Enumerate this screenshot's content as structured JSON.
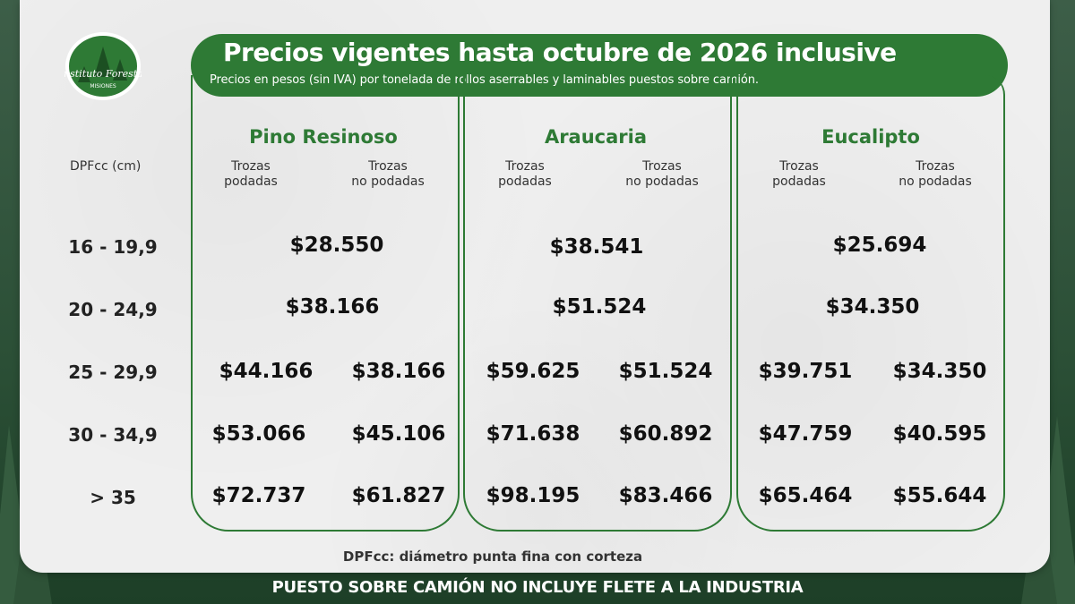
{
  "header": {
    "title": "Precios vigentes hasta octubre de 2026 inclusive",
    "subtitle": "Precios en pesos (sin IVA) por tonelada de rollos aserrables y laminables puestos sobre camión.",
    "logo_text": "Instituto Forestal",
    "logo_subtext": "MISIONES"
  },
  "colors": {
    "brand_green": "#2e7a35",
    "paper": "#efefef",
    "forest": "#1f4a2c"
  },
  "table": {
    "dpf_header": "DPFcc (cm)",
    "species": [
      {
        "name": "Pino Resinoso",
        "sub1": "Trozas\npodadas",
        "sub2": "Trozas\nno podadas"
      },
      {
        "name": "Araucaria",
        "sub1": "Trozas\npodadas",
        "sub2": "Trozas\nno podadas"
      },
      {
        "name": "Eucalipto",
        "sub1": "Trozas\npodadas",
        "sub2": "Trozas\nno podadas"
      }
    ],
    "rows": [
      {
        "label": "16 - 19,9",
        "prices": [
          [
            "$28.550"
          ],
          [
            "$38.541"
          ],
          [
            "$25.694"
          ]
        ]
      },
      {
        "label": "20 - 24,9",
        "prices": [
          [
            "$38.166"
          ],
          [
            "$51.524"
          ],
          [
            "$34.350"
          ]
        ]
      },
      {
        "label": "25 - 29,9",
        "prices": [
          [
            "$44.166",
            "$38.166"
          ],
          [
            "$59.625",
            "$51.524"
          ],
          [
            "$39.751",
            "$34.350"
          ]
        ]
      },
      {
        "label": "30 - 34,9",
        "prices": [
          [
            "$53.066",
            "$45.106"
          ],
          [
            "$71.638",
            "$60.892"
          ],
          [
            "$47.759",
            "$40.595"
          ]
        ]
      },
      {
        "label": "> 35",
        "prices": [
          [
            "$72.737",
            "$61.827"
          ],
          [
            "$98.195",
            "$83.466"
          ],
          [
            "$65.464",
            "$55.644"
          ]
        ]
      }
    ]
  },
  "footnote": "DPFcc: diámetro punta fina con corteza",
  "banner": "PUESTO SOBRE CAMIÓN NO INCLUYE FLETE A LA INDUSTRIA"
}
